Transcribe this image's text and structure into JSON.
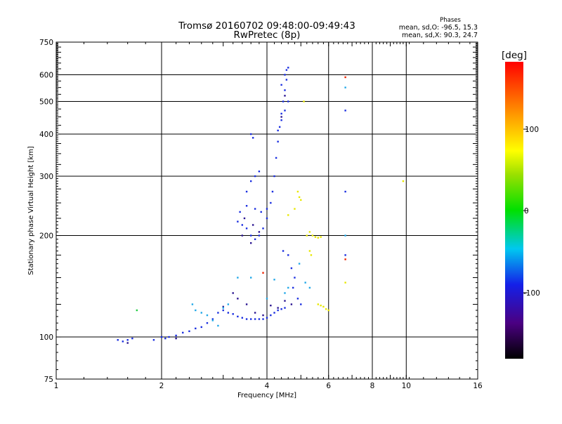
{
  "chart_data": {
    "type": "scatter",
    "title": "Tromsø 20160702 09:48:00-09:49:43",
    "subtitle": "RwPretec (8p)",
    "xlabel": "Frequency [MHz]",
    "ylabel": "Stationary phase Virtual Height [km]",
    "x_scale": "log",
    "y_scale": "log",
    "xlim": [
      1,
      16
    ],
    "ylim": [
      75,
      750
    ],
    "x_ticks": [
      "1",
      "2",
      "4",
      "6",
      "8",
      "10",
      "16"
    ],
    "y_ticks": [
      "75",
      "100",
      "200",
      "300",
      "400",
      "500",
      "600",
      "750"
    ],
    "grid": true,
    "phase_legend": {
      "title": "Phases",
      "line_o": "mean, sd,O: -96.5, 15.3",
      "line_x": "mean, sd,X:  90.3, 24.7"
    },
    "colorbar": {
      "label": "[deg]",
      "range": [
        -180,
        180
      ],
      "tick_labels": [
        "100",
        "0",
        "-100"
      ]
    },
    "colors": {
      "ordinary": "#1a2ee0",
      "dark": "#2a1490",
      "cyan": "#22a8e8",
      "yellow": "#e8e800",
      "red": "#ee2200",
      "green": "#22cc44"
    },
    "series": [
      {
        "phase": -100,
        "color_key": "ordinary",
        "points": [
          [
            1.5,
            98
          ],
          [
            1.55,
            97
          ],
          [
            1.6,
            98
          ],
          [
            1.65,
            99
          ],
          [
            1.9,
            98
          ],
          [
            2.0,
            100
          ],
          [
            2.05,
            99
          ],
          [
            2.1,
            100
          ],
          [
            2.2,
            101
          ],
          [
            2.3,
            103
          ],
          [
            2.4,
            104
          ],
          [
            2.5,
            106
          ],
          [
            2.6,
            107
          ],
          [
            2.7,
            110
          ],
          [
            2.8,
            113
          ],
          [
            2.9,
            118
          ],
          [
            3.0,
            120
          ],
          [
            3.1,
            118
          ],
          [
            3.2,
            117
          ],
          [
            3.3,
            115
          ],
          [
            3.4,
            114
          ],
          [
            3.5,
            113
          ],
          [
            3.6,
            113
          ],
          [
            3.7,
            113
          ],
          [
            3.8,
            113
          ],
          [
            3.9,
            113
          ],
          [
            4.0,
            114
          ],
          [
            4.1,
            116
          ],
          [
            4.2,
            118
          ],
          [
            4.3,
            120
          ],
          [
            4.4,
            121
          ],
          [
            4.5,
            122
          ],
          [
            3.3,
            220
          ],
          [
            3.4,
            215
          ],
          [
            3.5,
            210
          ],
          [
            3.6,
            200
          ],
          [
            3.7,
            195
          ],
          [
            3.8,
            200
          ],
          [
            3.9,
            210
          ],
          [
            4.0,
            225
          ],
          [
            3.35,
            235
          ],
          [
            3.5,
            245
          ],
          [
            3.7,
            240
          ],
          [
            3.85,
            235
          ],
          [
            4.0,
            240
          ],
          [
            4.1,
            250
          ],
          [
            4.15,
            270
          ],
          [
            4.2,
            300
          ],
          [
            4.25,
            340
          ],
          [
            4.3,
            380
          ],
          [
            4.35,
            420
          ],
          [
            4.4,
            460
          ],
          [
            4.45,
            500
          ],
          [
            4.5,
            540
          ],
          [
            4.55,
            580
          ],
          [
            4.6,
            630
          ],
          [
            4.3,
            410
          ],
          [
            4.4,
            440
          ],
          [
            4.5,
            470
          ],
          [
            4.6,
            500
          ],
          [
            4.4,
            560
          ],
          [
            4.5,
            600
          ],
          [
            4.55,
            620
          ],
          [
            3.6,
            400
          ],
          [
            3.65,
            390
          ],
          [
            3.5,
            270
          ],
          [
            3.6,
            290
          ],
          [
            3.7,
            300
          ],
          [
            3.8,
            310
          ],
          [
            4.45,
            180
          ],
          [
            4.6,
            175
          ],
          [
            4.7,
            160
          ],
          [
            4.8,
            150
          ],
          [
            4.75,
            140
          ],
          [
            4.9,
            130
          ],
          [
            5.0,
            125
          ],
          [
            6.7,
            270
          ],
          [
            6.7,
            175
          ],
          [
            6.7,
            470
          ]
        ]
      },
      {
        "phase": -130,
        "color_key": "dark",
        "points": [
          [
            1.6,
            96
          ],
          [
            2.2,
            99
          ],
          [
            3.0,
            123
          ],
          [
            3.2,
            135
          ],
          [
            3.3,
            130
          ],
          [
            3.5,
            125
          ],
          [
            3.7,
            118
          ],
          [
            3.9,
            116
          ],
          [
            4.1,
            124
          ],
          [
            4.3,
            122
          ],
          [
            3.4,
            200
          ],
          [
            3.6,
            190
          ],
          [
            3.8,
            205
          ],
          [
            3.45,
            225
          ],
          [
            3.65,
            215
          ],
          [
            4.5,
            128
          ],
          [
            4.7,
            125
          ],
          [
            4.4,
            450
          ],
          [
            4.5,
            520
          ]
        ]
      },
      {
        "phase": -60,
        "color_key": "cyan",
        "points": [
          [
            2.45,
            125
          ],
          [
            2.5,
            120
          ],
          [
            2.6,
            118
          ],
          [
            2.7,
            116
          ],
          [
            2.8,
            112
          ],
          [
            2.9,
            108
          ],
          [
            3.0,
            122
          ],
          [
            3.1,
            125
          ],
          [
            3.3,
            150
          ],
          [
            3.6,
            150
          ],
          [
            4.0,
            130
          ],
          [
            4.2,
            148
          ],
          [
            4.5,
            135
          ],
          [
            4.6,
            140
          ],
          [
            4.95,
            165
          ],
          [
            5.15,
            145
          ],
          [
            5.3,
            140
          ],
          [
            6.7,
            550
          ],
          [
            6.7,
            200
          ]
        ]
      },
      {
        "phase": 110,
        "color_key": "yellow",
        "points": [
          [
            4.9,
            270
          ],
          [
            4.95,
            260
          ],
          [
            5.0,
            255
          ],
          [
            5.1,
            500
          ],
          [
            5.2,
            200
          ],
          [
            5.3,
            205
          ],
          [
            5.4,
            200
          ],
          [
            5.5,
            198
          ],
          [
            5.6,
            197
          ],
          [
            5.7,
            198
          ],
          [
            5.3,
            180
          ],
          [
            5.35,
            175
          ],
          [
            5.6,
            125
          ],
          [
            5.7,
            124
          ],
          [
            5.8,
            123
          ],
          [
            5.9,
            121
          ],
          [
            6.0,
            120
          ],
          [
            4.6,
            230
          ],
          [
            4.8,
            240
          ],
          [
            6.7,
            145
          ],
          [
            9.8,
            290
          ]
        ]
      },
      {
        "phase": 170,
        "color_key": "red",
        "points": [
          [
            3.9,
            155
          ],
          [
            6.7,
            590
          ],
          [
            6.7,
            170
          ]
        ]
      },
      {
        "phase": 20,
        "color_key": "green",
        "points": [
          [
            1.7,
            120
          ]
        ]
      }
    ]
  }
}
